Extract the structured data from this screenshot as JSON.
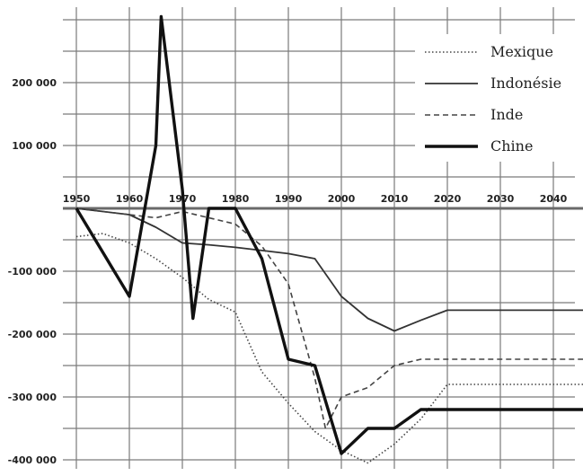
{
  "chart_data": {
    "type": "line",
    "title": "",
    "xlabel": "",
    "ylabel": "",
    "xlim": [
      1950,
      2050
    ],
    "ylim": [
      -415000,
      310000
    ],
    "grid": true,
    "legend_position": "top-right",
    "x_ticks": [
      1950,
      1960,
      1970,
      1980,
      1990,
      2000,
      2010,
      2020,
      2030,
      2040
    ],
    "x_tick_labels": [
      "1950",
      "1960",
      "1970",
      "1980",
      "1990",
      "2000",
      "2010",
      "2020",
      "2030",
      "2040"
    ],
    "y_ticks": [
      200000,
      100000,
      -100000,
      -200000,
      -300000,
      -400000
    ],
    "y_tick_labels": [
      "200 000",
      "100 000",
      "-100 000",
      "-200 000",
      "-300 000",
      "-400 000"
    ],
    "series": [
      {
        "name": "Mexique",
        "style": "dotted",
        "color": "#444444",
        "points": [
          [
            1950,
            -45000
          ],
          [
            1955,
            -40000
          ],
          [
            1960,
            -55000
          ],
          [
            1965,
            -80000
          ],
          [
            1970,
            -110000
          ],
          [
            1975,
            -145000
          ],
          [
            1980,
            -165000
          ],
          [
            1985,
            -260000
          ],
          [
            1990,
            -310000
          ],
          [
            1995,
            -355000
          ],
          [
            2000,
            -385000
          ],
          [
            2005,
            -405000
          ],
          [
            2010,
            -375000
          ],
          [
            2015,
            -335000
          ],
          [
            2020,
            -280000
          ],
          [
            2025,
            -280000
          ],
          [
            2050,
            -280000
          ]
        ]
      },
      {
        "name": "Indonésie",
        "style": "solid",
        "color": "#333333",
        "points": [
          [
            1950,
            0
          ],
          [
            1955,
            -5000
          ],
          [
            1960,
            -10000
          ],
          [
            1965,
            -30000
          ],
          [
            1970,
            -55000
          ],
          [
            1975,
            -58000
          ],
          [
            1980,
            -62000
          ],
          [
            1985,
            -67000
          ],
          [
            1990,
            -72000
          ],
          [
            1995,
            -80000
          ],
          [
            2000,
            -140000
          ],
          [
            2005,
            -175000
          ],
          [
            2010,
            -195000
          ],
          [
            2015,
            -178000
          ],
          [
            2020,
            -162000
          ],
          [
            2030,
            -162000
          ],
          [
            2050,
            -162000
          ]
        ]
      },
      {
        "name": "Inde",
        "style": "dashed",
        "color": "#444444",
        "points": [
          [
            1950,
            0
          ],
          [
            1955,
            -5000
          ],
          [
            1960,
            -10000
          ],
          [
            1965,
            -15000
          ],
          [
            1970,
            -5000
          ],
          [
            1975,
            -15000
          ],
          [
            1980,
            -25000
          ],
          [
            1985,
            -60000
          ],
          [
            1990,
            -120000
          ],
          [
            1995,
            -270000
          ],
          [
            1997,
            -350000
          ],
          [
            2000,
            -300000
          ],
          [
            2005,
            -285000
          ],
          [
            2010,
            -250000
          ],
          [
            2015,
            -240000
          ],
          [
            2020,
            -240000
          ],
          [
            2050,
            -240000
          ]
        ]
      },
      {
        "name": "Chine",
        "style": "thick",
        "color": "#111111",
        "points": [
          [
            1950,
            0
          ],
          [
            1955,
            -70000
          ],
          [
            1960,
            -140000
          ],
          [
            1965,
            100000
          ],
          [
            1966,
            305000
          ],
          [
            1970,
            30000
          ],
          [
            1972,
            -175000
          ],
          [
            1975,
            0
          ],
          [
            1980,
            0
          ],
          [
            1985,
            -80000
          ],
          [
            1990,
            -240000
          ],
          [
            1995,
            -250000
          ],
          [
            2000,
            -390000
          ],
          [
            2005,
            -350000
          ],
          [
            2010,
            -350000
          ],
          [
            2015,
            -320000
          ],
          [
            2020,
            -320000
          ],
          [
            2050,
            -320000
          ]
        ]
      }
    ]
  }
}
